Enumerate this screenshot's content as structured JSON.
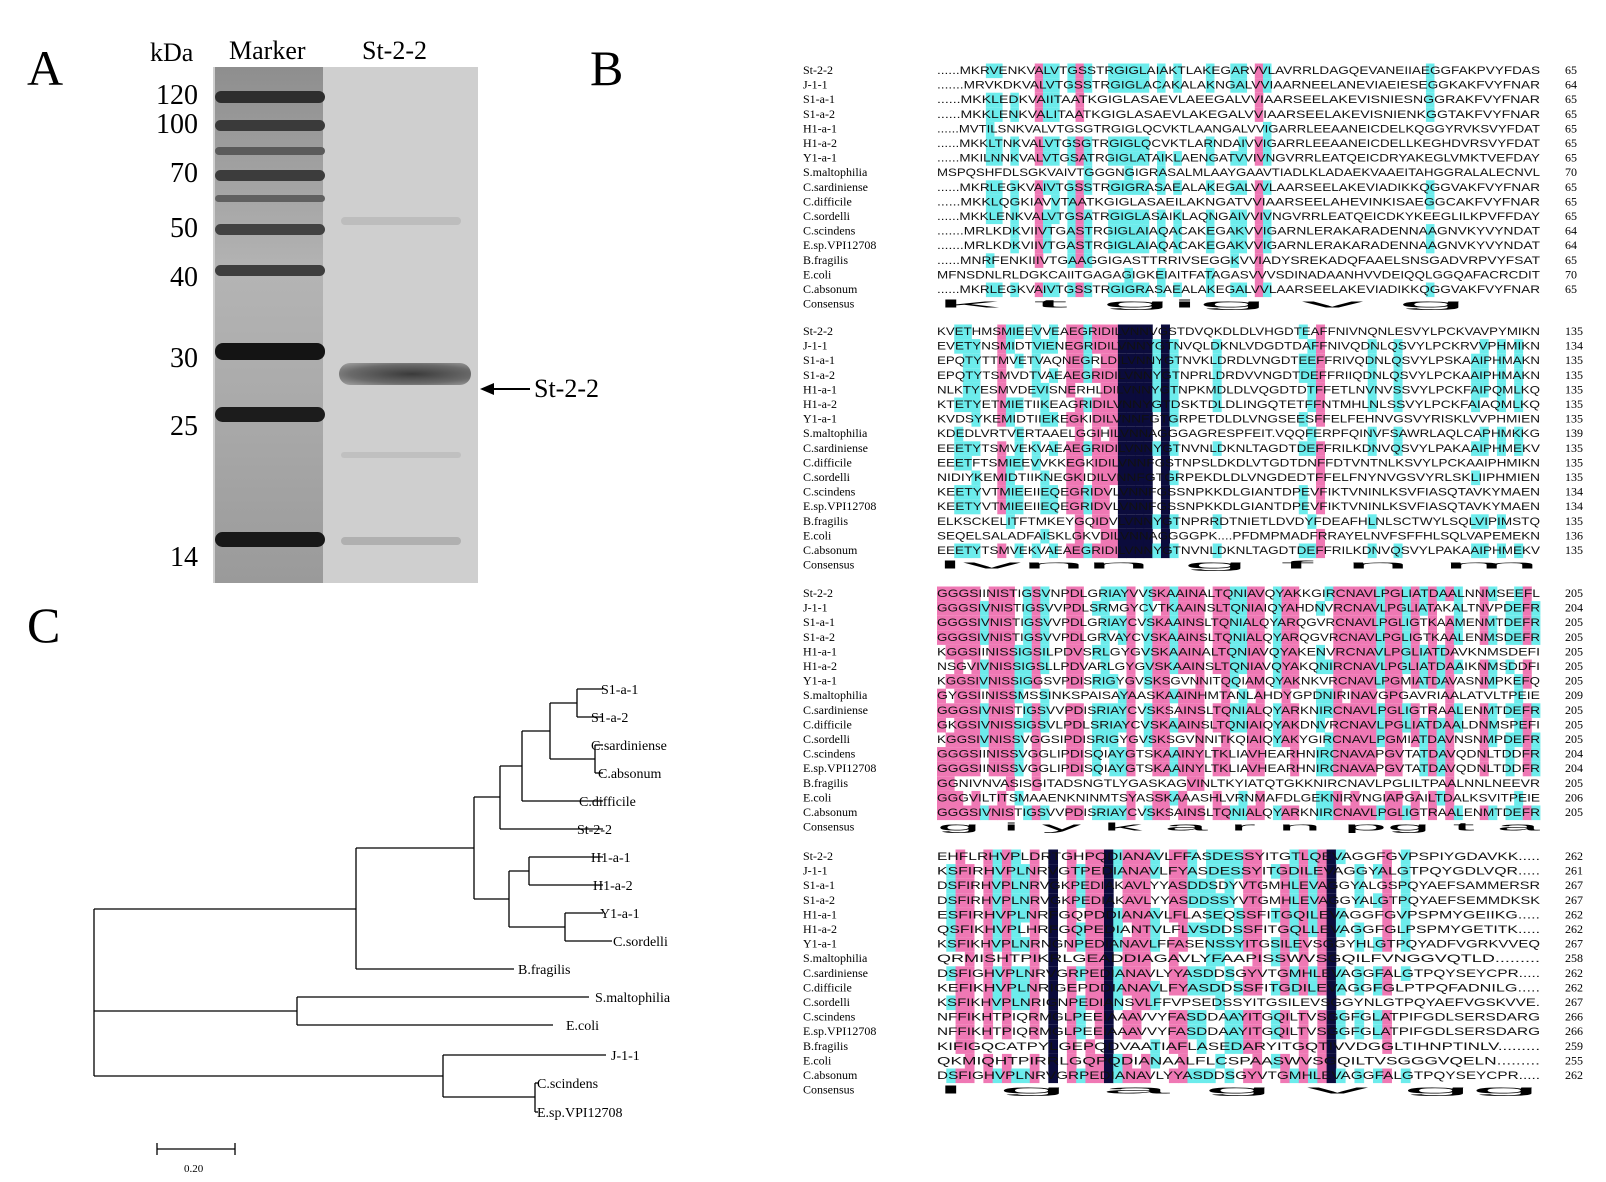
{
  "panelA": {
    "letter": "A",
    "kda_label": "kDa",
    "lane_labels": [
      "Marker",
      "St-2-2"
    ],
    "marker_weights": [
      "120",
      "100",
      "70",
      "50",
      "40",
      "30",
      "25",
      "14"
    ],
    "band_label": "St-2-2"
  },
  "panelB": {
    "letter": "B",
    "blocks": [
      {
        "rows": [
          {
            "name": "St-2-2",
            "seq": "......MKRVENKVALVTGSSTRGIGLAIAKTLAKEGARVVLAVRRLDAGQEVANEIIAEGGFAKPVYFDAS",
            "end": "65"
          },
          {
            "name": "J-1-1",
            "seq": ".......MRVKDKVALVTGSSTRGIGLACAKALAKNGALVVIAARNEELANEVIAEIESEGGKAKFVYFNAR",
            "end": "64"
          },
          {
            "name": "S1-a-1",
            "seq": "......MKKLEDKVAIITAATKGIGLASAEVLAEEGALVVIAARSEELAKEVISNIESNGGRAKFVYFNAR",
            "end": "65"
          },
          {
            "name": "S1-a-2",
            "seq": "......MKKLENKVALITAATKGIGLASAEVLAKEGALVVIAARSEELAKEVISNIENKGGTAKFVYFNAR",
            "end": "65"
          },
          {
            "name": "H1-a-1",
            "seq": "......MVTILSNKVALVTGSGTRGIGLQCVKTLAANGALVVIGARRLEEAANEICDELKQGGYRVKSVYFDAT",
            "end": "65"
          },
          {
            "name": "H1-a-2",
            "seq": "......MKKLTNKVALVTGSGTRGIGLQCVKTLARNDAIVVIGARRLEEAANEICDELLKEGHDVRSVYFDAT",
            "end": "65"
          },
          {
            "name": "Y1-a-1",
            "seq": "......MKILNNKVALVTGSATRGIGLATAIKLAENGATVVIVNGVRRLEATQEICDRYAKEGLVMKTVEFDAY",
            "end": "65"
          },
          {
            "name": "S.maltophilia",
            "seq": "MSPQSHFDLSGKVAIVTGGGNGIGRASALMLAAYGAAVTIADLKLADAEKVAAEITAHGGRALALECNVL",
            "end": "70"
          },
          {
            "name": "C.sardiniense",
            "seq": "......MKRLEGKVAIVTGSSTRGIGRASAEALAKEGALVVLAARSEELAKEVIADIKKQGGVAKFVYFNAR",
            "end": "65"
          },
          {
            "name": "C.difficile",
            "seq": "......MKKLQGKIAVVTAATKGIGLASAEILAKNGATVVIAARSEELAHEVINKISAEGGCAKFVYFNAR",
            "end": "65"
          },
          {
            "name": "C.sordelli",
            "seq": "......MKKLENKVALVTGSATRGIGLASAIKLAQNGAIVVIVNGVRRLEATQEICDKYKEEGLILKPVFFDAY",
            "end": "65"
          },
          {
            "name": "C.scindens",
            "seq": ".......MRLKDKVIIVTGASTRGIGLAIAQACAKEGAKVVIGARNLERAKARADENNAAGNVKYVYNDAT",
            "end": "64"
          },
          {
            "name": "E.sp.VPI12708",
            "seq": ".......MRLKDKVIIVTGASTRGIGLAIAQACAKEGAKVVIGARNLERAKARADENNAAGNVKYVYNDAT",
            "end": "64"
          },
          {
            "name": "B.fragilis",
            "seq": "......MNRFENKIIIVTGAAGGIGASTTRRIVSEGGKVVIADYSREKADQFAAELSNSGADVRPVYFSAT",
            "end": "65"
          },
          {
            "name": "E.coli",
            "seq": "MFNSDNLRLDGKCAIITGAGAGIGKEIAITFATAGASVVVSDINADAANHVVDEIQQLGGQAFACRCDIT",
            "end": "70"
          },
          {
            "name": "C.absonum",
            "seq": "......MKRLEGKVAIVTGSSTRGIGRASAEALAKEGALVVLAARSEELAKEVIADIKKQGGVAKFVYFNAR",
            "end": "65"
          }
        ],
        "consensus": "             k   t  gig              v                  g        "
      },
      {
        "rows": [
          {
            "name": "St-2-2",
            "seq": "KVETHMSMIEEVVEAEGRIDILVNNVGSTDVQKDLDLVHGDTEAFFNIVNQNLESVYLPCKVAVPYMIKN",
            "end": "135"
          },
          {
            "name": "J-1-1",
            "seq": "EVETYNSMIDTVIENEGRIDILVNNYGTNVQLDKNLVDGDTDAFFNIVQDNLQSVYLPCKRVVPHMIKN",
            "end": "134"
          },
          {
            "name": "S1-a-1",
            "seq": "EPQTYTTMVETVAQNEGRLDILVNNYGTNVKLDRDLVNGDTEEFFRIVQDNLQSVYLPSKAAIPHMAKN",
            "end": "135"
          },
          {
            "name": "S1-a-2",
            "seq": "EPQTYTSMVDTVAEAEGRIDILVNNYGTNPRLDRDVVNGDTDEFFRIIQDNLQSVYLPCKAAIPHMAKN",
            "end": "135"
          },
          {
            "name": "H1-a-1",
            "seq": "NLKTYESMVDEVISNERHLDILVNNYGTNPKMDLDLVQGDTDTFFETLNVNVSSVYLPCKFAIPQMLKQ",
            "end": "135"
          },
          {
            "name": "H1-a-2",
            "seq": "KTETYETMIETIIKEAGRIDILVNNYGTDSKTDLDLINGQTETFFNTMHLNLSSVYLPCKFAIAQMLKQ",
            "end": "135"
          },
          {
            "name": "Y1-a-1",
            "seq": "KVDSYKEMIDTIIEKEGKIDILVNNFGTGRPETDLDLVNGSEESFFELFEHNVGSVYRISKLVVPHMIEN",
            "end": "135"
          },
          {
            "name": "S.maltophilia",
            "seq": "KDEDLVRTVERTAAELGGIHILVNNAGGGAGRESPFEIT.VQQFERPFQINVFSAWRLAQLCAPHMKKG",
            "end": "139"
          },
          {
            "name": "C.sardiniense",
            "seq": "EEETYTSMVEKVAEAEGRIDILVNNYGTNVNLDKNLTAGDTDEFFRILKDNVQSVYLPAKAAIPHMEKV",
            "end": "135"
          },
          {
            "name": "C.difficile",
            "seq": "EEETFTSMIEEVVKKEGKIDILVNNFGSTNPSLDKDLVTGDTDNFFDTVNTNLKSVYLPCKAAIPHMIKN",
            "end": "135"
          },
          {
            "name": "C.sordelli",
            "seq": "NIDIYKEMIDTIIKNEGKIDILVNNFGTGRPEKDLDLVNGDEDTFFELFNYNVGSVYRLSKLIIPHMIEN",
            "end": "135"
          },
          {
            "name": "C.scindens",
            "seq": "KEETYVTMIEEIIEQEGRIDVLVNNFGSSNPKKDLGIANTDPEVFIKTVNINLKSVFIASQTAVKYMAEN",
            "end": "134"
          },
          {
            "name": "E.sp.VPI12708",
            "seq": "KEETYVTMIEEIIEQEGRIDVLVNNFGSSNPKKDLGIANTDPEVFIKTVNINLKSVFIASQTAVKYMAEN",
            "end": "134"
          },
          {
            "name": "B.fragilis",
            "seq": "ELKSCKELITFTMKEYGQIDVLVNNYGTNPRRDTNIETLDVDYFDEAFHLNLSCTWYLSQLVIPIMSTQ",
            "end": "135"
          },
          {
            "name": "E.coli",
            "seq": "SEQELSALADFAISKLGKVDILVNNAGGGGPK....PFDMPMADFRRAYELNVFSFFHLSQLVAPEMEKN",
            "end": "136"
          },
          {
            "name": "C.absonum",
            "seq": "EEETYTSMVEKVAEAEGRIDILVNNYGTNVNLDKNLTAGDTDEFFRILKDNVQSVYLPAKAAIPHMEKV",
            "end": "135"
          }
        ],
        "consensus": "                     lvnn g                 f      n             m    "
      },
      {
        "rows": [
          {
            "name": "St-2-2",
            "seq": "GGGSIINISTIGSVNPDLGRIAYVVSKAAINALTQNIAVQYAKKGIRCNAVLPGLIATDAALNNMSEEFL",
            "end": "205"
          },
          {
            "name": "J-1-1",
            "seq": "GGGSIVNISTIGSVVPDLSRMGYCVTKAAINSLTQNIAIQYAHDNVRCNAVLPGLIATAKALTNVPDEFR",
            "end": "204"
          },
          {
            "name": "S1-a-1",
            "seq": "GGGSIVNISTIGSVVPDLGRIAYCVSKAAINSLTQNIALQYARQGVRCNAVLPGLIGTKAAMENMTDEFR",
            "end": "205"
          },
          {
            "name": "S1-a-2",
            "seq": "GGGSIVNISTIGSVVPDLGRVAYCVSKAAINSLTQNIALQYARQGVRCNAVLPGLIGTKAALENMSDEFR",
            "end": "205"
          },
          {
            "name": "H1-a-1",
            "seq": "KGGSIINISSIGSILPDVSRLGYGVSKAAINALTQNIAVQYAKENVRCNAVLPGLIATDAVKNMSDEFI",
            "end": "205"
          },
          {
            "name": "H1-a-2",
            "seq": "NSGVIVNISSIGSLLPDVARLGYGVSKAAINSLTQNIAVQYAKQNIRCNAVLPGLIATDAAIKNMSDDFI",
            "end": "205"
          },
          {
            "name": "Y1-a-1",
            "seq": "KGGSIVNISSIGGSVPDISRIGYGVSKSGVNNITQQIAMQYAKNKVRCNAVLPGMIATDAVASNMPKEFQ",
            "end": "205"
          },
          {
            "name": "S.maltophilia",
            "seq": "GYGSIINISSMSSINKSPAISAYAASKAAINHMTANLAHDYGPDNIRINAVGPGAVRIAALATVLTPEIE",
            "end": "209"
          },
          {
            "name": "C.sardiniense",
            "seq": "GGGSIVNISTIGSVVPDISRIAYCVSKSAINSLTQNIALQYARKNIRCNAVLPGLIGTRAALENMTDEFR",
            "end": "205"
          },
          {
            "name": "C.difficile",
            "seq": "GKGSIVNISSIGSVLPDLSRIAYCVSKAAINSLTQNIAIQYAKDNVRCNAVLPGLIATDAALDNMSPEFI",
            "end": "205"
          },
          {
            "name": "C.sordelli",
            "seq": "KGGSIVNISSVGGSIPDISRIGYGVSKSGVNNITKQIAIQYAKYGIRCNAVLPGMIATDAVNSNMPDEFR",
            "end": "205"
          },
          {
            "name": "C.scindens",
            "seq": "GGGSIINISSVGGLIPDISQIAYGTSKAAINYLTKLIAVHEARHNIRCNAVAPGVTATDAVQDNLTDDFR",
            "end": "204"
          },
          {
            "name": "E.sp.VPI12708",
            "seq": "GGGSIINISSVGGLIPDISQIAYGTSKAAINYLTKLIAVHEARHNIRCNAVAPGVTATDAVQDNLTDDFR",
            "end": "204"
          },
          {
            "name": "B.fragilis",
            "seq": "GGNIVNVASISGITADSNGTLYGASKAGVINLTKYIATQTGKKNIRCNAVLPGLILTPAALNNLNEEVR",
            "end": "205"
          },
          {
            "name": "E.coli",
            "seq": "GGGVILTITSMAAENKNINMTSYASSKAAASHLVRNMAFDLGEKNIRVNGIAPGAILTDALKSVITPEIE",
            "end": "206"
          },
          {
            "name": "C.absonum",
            "seq": "GGGSIVNISTIGSVVPDISRIAYCVSKSAINSLTQNIALQYARKNIRCNAVLPGLIGTRAALENMTDEFR",
            "end": "205"
          }
        ],
        "consensus": " g i                    y  k           a        r n   pg   t  a       "
      },
      {
        "rows": [
          {
            "name": "St-2-2",
            "seq": "EHFLRHVPLDRTGHPQDIANAVLFFASDESSYITGTLQEVAGGFGVPSPIYGDAVKK.....",
            "end": "262"
          },
          {
            "name": "J-1-1",
            "seq": "KSFIRHVPLNRVGTPEDIANAVLFYASDESSYITGDILEVAGGYALGTPQYGDLVQR.....",
            "end": "261"
          },
          {
            "name": "S1-a-1",
            "seq": "DSFIRHVPLNRVGKPEDIAKAVLYYASDDSDYVTGMHLEVAGGYALGSPQYAEFSAMMERSR",
            "end": "267"
          },
          {
            "name": "S1-a-2",
            "seq": "DSFIRHVPLNRVGKPEDIAKAVLYYASDDSSYVTGMHLEVAGGYALGTPQYAEFSEMMDKSK",
            "end": "267"
          },
          {
            "name": "H1-a-1",
            "seq": "ESFIRHVPLNRFGQPDDIANAVLFLASEQSSFITGQILEVAGGFGVPSPMYGEIIKG.....",
            "end": "262"
          },
          {
            "name": "H1-a-2",
            "seq": "QSFIKHVPLHRFGQPEDIANTVLFLVSDDSSFITGQLLEVAGGFGLPSPMYGETITK.....",
            "end": "262"
          },
          {
            "name": "Y1-a-1",
            "seq": "KSFIKHVPLNRNGNPEDIANAVLFFASENSSYITGSILEVSGGYHLGTPQYADFVGRKVVEQ",
            "end": "267"
          },
          {
            "name": "S.maltophilia",
            "seq": "QRMISHTPIKRLGEADDIAGAVLYFAAPISSWVSGQILFVNGGVQTLD.........",
            "end": "258"
          },
          {
            "name": "C.sardiniense",
            "seq": "DSFIGHVPLNRVGRPEDIANAVLYYASDDSGYVTGMHLEVAGGFALGTPQYSEYCPR.....",
            "end": "262"
          },
          {
            "name": "C.difficile",
            "seq": "KEFIKHVPLNRIGEPDDIANAVLFYASDDSSFITGDILEVAGGFGLPTPQFADNILG.....",
            "end": "262"
          },
          {
            "name": "C.sordelli",
            "seq": "KSFIKHVPLNRIGNPEDIANSVLFFVPSEDSSYITGSILEVSGGYNLGTPQYAEFVGSKVVE.",
            "end": "267"
          },
          {
            "name": "C.scindens",
            "seq": "NFFIKHTPIQRMGLPEEIAAAVVYFASDDAAYITGQILTVSGGFGLATPIFGDLSERSDARG",
            "end": "266"
          },
          {
            "name": "E.sp.VPI12708",
            "seq": "NFFIKHTPIQRMGLPEEIAAAVVYFASDDAAYITGQILTVSGGFGLATPIFGDLSERSDARG",
            "end": "266"
          },
          {
            "name": "B.fragilis",
            "seq": "KIFIGQCATPYLGEPQDVAATIAFLASEDARYITGQTIVVDGGLTIHNPTINLV.........",
            "end": "259"
          },
          {
            "name": "E.coli",
            "seq": "QKMIQHTPIRRLGQPQDIANAALFLCSPAASWVSGQILTVSGGGVQELN.........",
            "end": "255"
          },
          {
            "name": "C.absonum",
            "seq": "DSFIGHVPLNRVGRPEDIANAVLYYASDDSGYVTGMHLEVAGGFALGTPQYSEYCPR.....",
            "end": "262"
          }
        ],
        "consensus": "   l       g    a                g   v gg                        "
      }
    ],
    "consensus_label": "Consensus",
    "colors": {
      "identical": "#0b0b3c",
      "high": "#ef78b4",
      "medium": "#6cecec"
    }
  },
  "panelC": {
    "letter": "C",
    "leaves": [
      "S1-a-1",
      "S1-a-2",
      "C.sardiniense",
      "C.absonum",
      "C.difficile",
      "St-2-2",
      "H1-a-1",
      "H1-a-2",
      "Y1-a-1",
      "C.sordelli",
      "B.fragilis",
      "S.maltophilia",
      "E.coli",
      "J-1-1",
      "C.scindens",
      "E.sp.VPI12708"
    ],
    "scale_label": "0.20"
  }
}
